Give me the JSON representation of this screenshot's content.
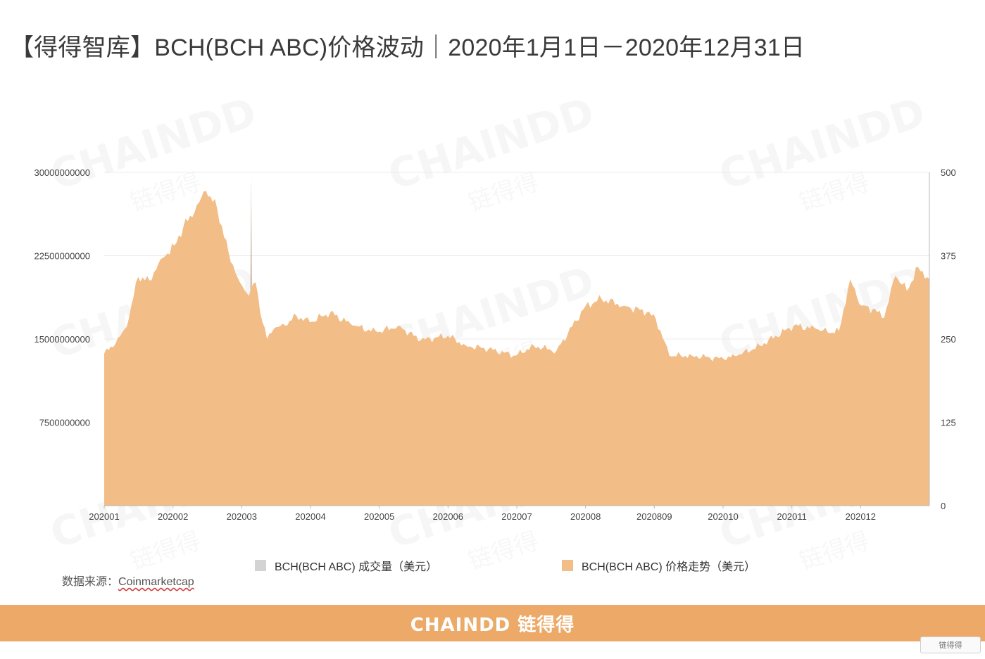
{
  "title": "【得得智库】BCH(BCH ABC)价格波动｜2020年1月1日－2020年12月31日",
  "source_label": "数据来源：",
  "source_link": "Coinmarketcap",
  "footer_brand": "CHAINDD 链得得",
  "corner_logo": "链得得",
  "watermark_text": "CHAINDD",
  "watermark_sub": "链得得",
  "colors": {
    "price_fill": "#f2bd86",
    "volume_fill": "#c9b6a5",
    "volume_legend": "#d3d3d3",
    "footer": "#eda968",
    "grid": "#ececec",
    "axis": "#bbbbbb"
  },
  "chart_data": {
    "type": "area",
    "x_tick_labels": [
      "202001",
      "202002",
      "202003",
      "202004",
      "202005",
      "202006",
      "202007",
      "202008",
      "2020809",
      "202010",
      "202011",
      "202012"
    ],
    "left_axis": {
      "ticks": [
        "30000000000",
        "22500000000",
        "15000000000",
        "7500000000"
      ],
      "ylim": [
        0,
        30000000000
      ]
    },
    "right_axis": {
      "ticks": [
        "500",
        "375",
        "250",
        "125",
        "0"
      ],
      "ylim": [
        0,
        500
      ]
    },
    "legend_position": "bottom",
    "grid": true,
    "series": [
      {
        "name": "BCH(BCH ABC) 成交量（美元）",
        "axis": "left",
        "color": "#c9b6a5",
        "x": [
          0,
          5,
          10,
          15,
          20,
          25,
          31,
          35,
          40,
          45,
          50,
          55,
          60,
          64,
          65,
          66,
          67,
          70,
          75,
          80,
          85,
          91,
          100,
          110,
          121,
          130,
          140,
          152,
          160,
          170,
          182,
          190,
          200,
          213,
          220,
          230,
          244,
          250,
          260,
          274,
          280,
          290,
          305,
          315,
          320,
          325,
          330,
          335,
          340,
          345,
          350,
          355,
          360,
          365
        ],
        "values": [
          1500000000,
          2200000000,
          2500000000,
          6000000000,
          3500000000,
          2500000000,
          4000000000,
          3200000000,
          4500000000,
          4800000000,
          6000000000,
          5200000000,
          5500000000,
          4000000000,
          29500000000,
          5000000000,
          4000000000,
          6500000000,
          4500000000,
          4000000000,
          3800000000,
          4200000000,
          3600000000,
          3300000000,
          3400000000,
          3200000000,
          2500000000,
          3800000000,
          1800000000,
          1200000000,
          1000000000,
          900000000,
          700000000,
          1200000000,
          2500000000,
          2200000000,
          1300000000,
          2600000000,
          1800000000,
          1100000000,
          1300000000,
          1800000000,
          2500000000,
          2800000000,
          1800000000,
          1600000000,
          7300000000,
          3500000000,
          2000000000,
          1700000000,
          6800000000,
          5500000000,
          6700000000,
          3800000000
        ]
      },
      {
        "name": "BCH(BCH ABC) 价格走势（美元）",
        "axis": "right",
        "color": "#f2bd86",
        "x": [
          0,
          5,
          10,
          15,
          20,
          25,
          31,
          35,
          40,
          45,
          50,
          55,
          60,
          64,
          67,
          70,
          72,
          75,
          80,
          85,
          91,
          100,
          110,
          121,
          130,
          140,
          152,
          160,
          170,
          182,
          190,
          200,
          213,
          220,
          230,
          240,
          244,
          250,
          260,
          274,
          280,
          290,
          305,
          315,
          320,
          325,
          330,
          335,
          340,
          345,
          350,
          355,
          360,
          365
        ],
        "values": [
          228,
          243,
          268,
          343,
          338,
          370,
          390,
          418,
          440,
          472,
          445,
          380,
          335,
          315,
          335,
          275,
          250,
          265,
          270,
          285,
          275,
          290,
          270,
          260,
          270,
          248,
          255,
          240,
          235,
          225,
          240,
          232,
          300,
          310,
          300,
          290,
          280,
          225,
          225,
          220,
          225,
          240,
          270,
          265,
          260,
          262,
          340,
          300,
          295,
          282,
          345,
          322,
          358,
          340
        ]
      }
    ]
  }
}
